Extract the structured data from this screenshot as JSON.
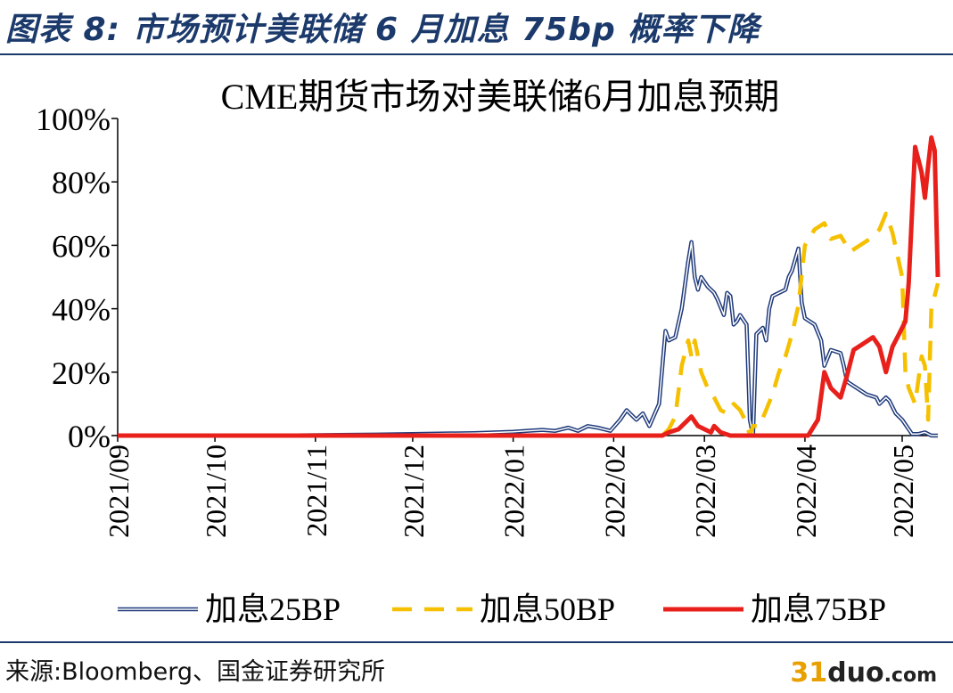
{
  "header": {
    "title": "图表 8:  市场预计美联储 6 月加息 75bp 概率下降"
  },
  "footer": {
    "source": "来源:Bloomberg、国金证券研究所",
    "watermark_num": "31",
    "watermark_name": "duo",
    "watermark_tld": ".com"
  },
  "colors": {
    "series_25": "#1f3a7a",
    "series_50": "#f5c000",
    "series_75": "#e8201b"
  },
  "chart_data": {
    "type": "line",
    "title": "CME期货市场对美联储6月加息预期",
    "xlabel": "",
    "ylabel": "",
    "ylim": [
      0,
      100
    ],
    "yticks": [
      "0%",
      "20%",
      "40%",
      "60%",
      "80%",
      "100%"
    ],
    "xlim": [
      "2021-09-01",
      "2022-05-12"
    ],
    "xticks": [
      {
        "date": "2021-09-01",
        "label": "2021/09"
      },
      {
        "date": "2021-10-01",
        "label": "2021/10"
      },
      {
        "date": "2021-11-01",
        "label": "2021/11"
      },
      {
        "date": "2021-12-01",
        "label": "2021/12"
      },
      {
        "date": "2022-01-01",
        "label": "2022/01"
      },
      {
        "date": "2022-02-01",
        "label": "2022/02"
      },
      {
        "date": "2022-03-01",
        "label": "2022/03"
      },
      {
        "date": "2022-04-01",
        "label": "2022/04"
      },
      {
        "date": "2022-05-01",
        "label": "2022/05"
      }
    ],
    "legend_position": "bottom",
    "grid": false,
    "series": [
      {
        "name": "加息25BP",
        "style": "double",
        "points": [
          [
            "2021-09-01",
            0
          ],
          [
            "2021-10-20",
            0
          ],
          [
            "2021-11-20",
            0.3
          ],
          [
            "2021-12-20",
            0.8
          ],
          [
            "2022-01-01",
            1.2
          ],
          [
            "2022-01-05",
            1.5
          ],
          [
            "2022-01-10",
            1.8
          ],
          [
            "2022-01-14",
            1.5
          ],
          [
            "2022-01-18",
            2.5
          ],
          [
            "2022-01-21",
            1.5
          ],
          [
            "2022-01-24",
            3
          ],
          [
            "2022-01-27",
            2.5
          ],
          [
            "2022-01-31",
            1.5
          ],
          [
            "2022-02-03",
            5
          ],
          [
            "2022-02-05",
            8
          ],
          [
            "2022-02-08",
            5
          ],
          [
            "2022-02-10",
            7
          ],
          [
            "2022-02-12",
            3
          ],
          [
            "2022-02-15",
            10
          ],
          [
            "2022-02-17",
            33
          ],
          [
            "2022-02-18",
            30
          ],
          [
            "2022-02-20",
            31
          ],
          [
            "2022-02-22",
            40
          ],
          [
            "2022-02-24",
            55
          ],
          [
            "2022-02-25",
            61
          ],
          [
            "2022-02-26",
            50
          ],
          [
            "2022-02-27",
            46
          ],
          [
            "2022-02-28",
            50
          ],
          [
            "2022-03-02",
            47
          ],
          [
            "2022-03-04",
            45
          ],
          [
            "2022-03-05",
            43
          ],
          [
            "2022-03-07",
            38
          ],
          [
            "2022-03-08",
            45
          ],
          [
            "2022-03-09",
            44
          ],
          [
            "2022-03-10",
            35
          ],
          [
            "2022-03-11",
            36
          ],
          [
            "2022-03-12",
            38
          ],
          [
            "2022-03-14",
            35
          ],
          [
            "2022-03-15",
            5
          ],
          [
            "2022-03-16",
            0
          ],
          [
            "2022-03-17",
            32
          ],
          [
            "2022-03-18",
            33
          ],
          [
            "2022-03-19",
            34
          ],
          [
            "2022-03-20",
            30
          ],
          [
            "2022-03-21",
            40
          ],
          [
            "2022-03-22",
            44
          ],
          [
            "2022-03-24",
            45
          ],
          [
            "2022-03-26",
            46
          ],
          [
            "2022-03-27",
            50
          ],
          [
            "2022-03-28",
            52
          ],
          [
            "2022-03-30",
            59
          ],
          [
            "2022-03-31",
            42
          ],
          [
            "2022-04-01",
            37
          ],
          [
            "2022-04-04",
            35
          ],
          [
            "2022-04-06",
            30
          ],
          [
            "2022-04-07",
            22
          ],
          [
            "2022-04-09",
            27
          ],
          [
            "2022-04-12",
            26
          ],
          [
            "2022-04-13",
            22
          ],
          [
            "2022-04-14",
            17
          ],
          [
            "2022-04-17",
            15
          ],
          [
            "2022-04-20",
            13
          ],
          [
            "2022-04-23",
            12
          ],
          [
            "2022-04-24",
            10
          ],
          [
            "2022-04-26",
            12
          ],
          [
            "2022-04-27",
            11
          ],
          [
            "2022-04-29",
            7
          ],
          [
            "2022-05-01",
            5
          ],
          [
            "2022-05-03",
            2
          ],
          [
            "2022-05-04",
            0.5
          ],
          [
            "2022-05-06",
            0.5
          ],
          [
            "2022-05-08",
            1
          ],
          [
            "2022-05-10",
            0
          ],
          [
            "2022-05-12",
            0
          ]
        ]
      },
      {
        "name": "加息50BP",
        "style": "dashed",
        "points": [
          [
            "2021-09-01",
            0
          ],
          [
            "2022-02-01",
            0
          ],
          [
            "2022-02-16",
            0
          ],
          [
            "2022-02-18",
            2
          ],
          [
            "2022-02-20",
            6
          ],
          [
            "2022-02-22",
            22
          ],
          [
            "2022-02-24",
            30
          ],
          [
            "2022-02-25",
            25
          ],
          [
            "2022-02-26",
            30
          ],
          [
            "2022-02-28",
            20
          ],
          [
            "2022-03-02",
            15
          ],
          [
            "2022-03-04",
            12
          ],
          [
            "2022-03-06",
            8
          ],
          [
            "2022-03-08",
            7
          ],
          [
            "2022-03-10",
            10
          ],
          [
            "2022-03-12",
            8
          ],
          [
            "2022-03-14",
            4
          ],
          [
            "2022-03-15",
            0
          ],
          [
            "2022-03-16",
            3
          ],
          [
            "2022-03-18",
            3
          ],
          [
            "2022-03-20",
            8
          ],
          [
            "2022-03-22",
            13
          ],
          [
            "2022-03-24",
            20
          ],
          [
            "2022-03-26",
            25
          ],
          [
            "2022-03-28",
            32
          ],
          [
            "2022-03-30",
            41
          ],
          [
            "2022-04-01",
            60
          ],
          [
            "2022-04-04",
            65
          ],
          [
            "2022-04-07",
            67
          ],
          [
            "2022-04-09",
            62
          ],
          [
            "2022-04-12",
            63
          ],
          [
            "2022-04-15",
            58
          ],
          [
            "2022-04-18",
            60
          ],
          [
            "2022-04-21",
            62
          ],
          [
            "2022-04-24",
            65
          ],
          [
            "2022-04-26",
            70
          ],
          [
            "2022-04-28",
            64
          ],
          [
            "2022-05-01",
            50
          ],
          [
            "2022-05-02",
            20
          ],
          [
            "2022-05-03",
            15
          ],
          [
            "2022-05-05",
            10
          ],
          [
            "2022-05-07",
            25
          ],
          [
            "2022-05-08",
            22
          ],
          [
            "2022-05-09",
            5
          ],
          [
            "2022-05-10",
            40
          ],
          [
            "2022-05-12",
            48
          ]
        ]
      },
      {
        "name": "加息75BP",
        "style": "solid",
        "points": [
          [
            "2021-09-01",
            0
          ],
          [
            "2022-02-01",
            0
          ],
          [
            "2022-02-16",
            0
          ],
          [
            "2022-02-18",
            1
          ],
          [
            "2022-02-21",
            2
          ],
          [
            "2022-02-24",
            5
          ],
          [
            "2022-02-25",
            6
          ],
          [
            "2022-02-27",
            3
          ],
          [
            "2022-03-01",
            2
          ],
          [
            "2022-03-03",
            1
          ],
          [
            "2022-03-04",
            3
          ],
          [
            "2022-03-06",
            1
          ],
          [
            "2022-03-09",
            0
          ],
          [
            "2022-03-12",
            0
          ],
          [
            "2022-03-15",
            0
          ],
          [
            "2022-03-20",
            0
          ],
          [
            "2022-03-24",
            0
          ],
          [
            "2022-03-28",
            0
          ],
          [
            "2022-04-02",
            0
          ],
          [
            "2022-04-05",
            5
          ],
          [
            "2022-04-07",
            20
          ],
          [
            "2022-04-09",
            15
          ],
          [
            "2022-04-12",
            12
          ],
          [
            "2022-04-14",
            19
          ],
          [
            "2022-04-16",
            27
          ],
          [
            "2022-04-19",
            29
          ],
          [
            "2022-04-22",
            31
          ],
          [
            "2022-04-24",
            28
          ],
          [
            "2022-04-26",
            20
          ],
          [
            "2022-04-28",
            28
          ],
          [
            "2022-04-30",
            32
          ],
          [
            "2022-05-02",
            36
          ],
          [
            "2022-05-03",
            48
          ],
          [
            "2022-05-05",
            91
          ],
          [
            "2022-05-06",
            87
          ],
          [
            "2022-05-07",
            83
          ],
          [
            "2022-05-08",
            75
          ],
          [
            "2022-05-09",
            85
          ],
          [
            "2022-05-10",
            94
          ],
          [
            "2022-05-11",
            90
          ],
          [
            "2022-05-12",
            50
          ]
        ]
      }
    ]
  }
}
